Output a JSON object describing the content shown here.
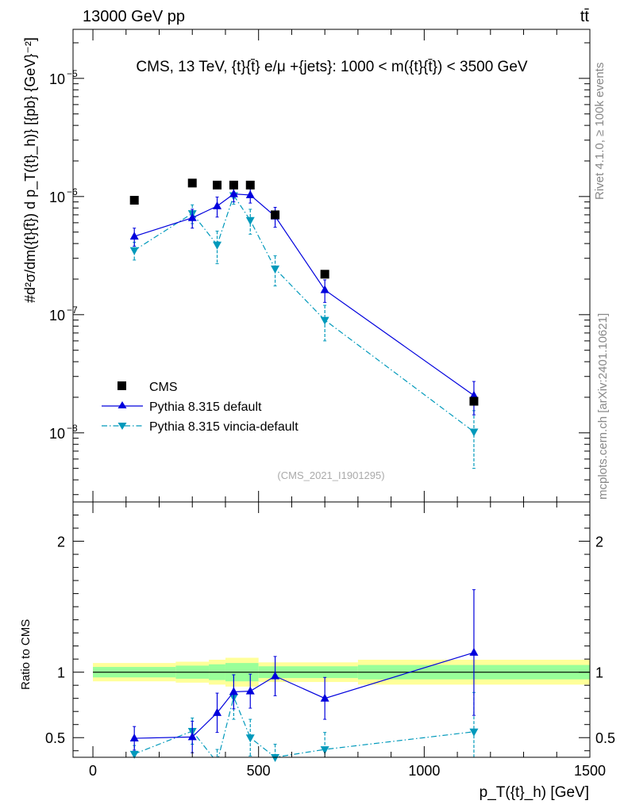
{
  "header": {
    "left": "13000 GeV pp",
    "right": "tt̄"
  },
  "side_labels": {
    "rivet": "Rivet 4.1.0, ≥ 100k events",
    "mcplots": "mcplots.cern.ch [arXiv:2401.10621]"
  },
  "watermark": "(CMS_2021_I1901295)",
  "colors": {
    "cms": "#000000",
    "default": "#0000dd",
    "vincia": "#0099bb",
    "band_inner": "#99ff99",
    "band_outer": "#ffff99"
  },
  "chart_data": [
    {
      "type": "scatter",
      "title": "CMS, 13 TeV, {t}{t̄} e/μ +{jets}: 1000 < m({t}{t̄}) < 3500 GeV",
      "xlabel": "p_T({t}_h) [GeV]",
      "ylabel": "#d²σ/dm({t}{t̄}) d p_T({t}_h)} [{pb} {GeV}⁻²]",
      "yscale": "log",
      "xlim": [
        -60,
        1500
      ],
      "ylim": [
        2.6e-09,
        2.6e-05
      ],
      "y_ticks": [
        {
          "value": 1e-08,
          "label": "10",
          "exp": "−8"
        },
        {
          "value": 1e-07,
          "label": "10",
          "exp": "−7"
        },
        {
          "value": 1e-06,
          "label": "10",
          "exp": "−6"
        },
        {
          "value": 1e-05,
          "label": "10",
          "exp": "−5"
        }
      ],
      "legend": {
        "placement": "bottom-left",
        "entries": [
          "CMS",
          "Pythia 8.315 default",
          "Pythia 8.315 vincia-default"
        ]
      },
      "series": [
        {
          "name": "CMS",
          "marker": "square",
          "color": "#000000",
          "x": [
            125,
            300,
            375,
            425,
            475,
            550,
            700,
            1150
          ],
          "y": [
            9.3e-07,
            1.3e-06,
            1.25e-06,
            1.25e-06,
            1.25e-06,
            7e-07,
            2.2e-07,
            1.85e-08
          ],
          "err": [
            0,
            0,
            0,
            0,
            0,
            0,
            0,
            0
          ]
        },
        {
          "name": "Pythia 8.315 default",
          "marker": "triangle-up",
          "color": "#0000dd",
          "line": "solid",
          "x": [
            125,
            300,
            375,
            425,
            475,
            550,
            700,
            1150
          ],
          "y": [
            4.6e-07,
            6.6e-07,
            8.3e-07,
            1.05e-06,
            1.03e-06,
            6.8e-07,
            1.62e-07,
            2.07e-08
          ],
          "err": [
            8e-08,
            1.2e-07,
            1.6e-07,
            1.5e-07,
            1.5e-07,
            1.3e-07,
            3.5e-08,
            6.5e-09
          ]
        },
        {
          "name": "Pythia 8.315 vincia-default",
          "marker": "triangle-down",
          "color": "#0099bb",
          "line": "dashdot",
          "x": [
            125,
            300,
            375,
            425,
            475,
            550,
            700,
            1150
          ],
          "y": [
            3.5e-07,
            7.2e-07,
            3.9e-07,
            1.02e-06,
            6.3e-07,
            2.45e-07,
            9e-08,
            1.02e-08
          ],
          "err": [
            6e-08,
            1.3e-07,
            1.2e-07,
            1.6e-07,
            1.5e-07,
            7e-08,
            3e-08,
            5.2e-09
          ]
        }
      ]
    },
    {
      "type": "scatter",
      "title": "",
      "xlabel": "p_T({t}_h) [GeV]",
      "ylabel": "Ratio to CMS",
      "xlim": [
        -60,
        1500
      ],
      "ylim": [
        0.35,
        2.3
      ],
      "x_tick_labels": [
        "0",
        "500",
        "1000",
        "1500"
      ],
      "y_tick_labels": [
        "0.5",
        "1",
        "2"
      ],
      "band_bins": [
        {
          "xlo": 0,
          "xhi": 250,
          "inner": 0.04,
          "outer": 0.07
        },
        {
          "xlo": 250,
          "xhi": 350,
          "inner": 0.05,
          "outer": 0.08
        },
        {
          "xlo": 350,
          "xhi": 400,
          "inner": 0.06,
          "outer": 0.095
        },
        {
          "xlo": 400,
          "xhi": 500,
          "inner": 0.07,
          "outer": 0.11
        },
        {
          "xlo": 500,
          "xhi": 800,
          "inner": 0.045,
          "outer": 0.075
        },
        {
          "xlo": 800,
          "xhi": 1500,
          "inner": 0.055,
          "outer": 0.095
        }
      ],
      "series": [
        {
          "name": "Pythia 8.315 default",
          "marker": "triangle-up",
          "color": "#0000dd",
          "line": "solid",
          "x": [
            125,
            300,
            375,
            425,
            475,
            550,
            700,
            1150
          ],
          "y": [
            0.495,
            0.505,
            0.69,
            0.85,
            0.855,
            0.97,
            0.8,
            1.15
          ],
          "err": [
            0.09,
            0.12,
            0.15,
            0.13,
            0.13,
            0.15,
            0.16,
            0.48
          ]
        },
        {
          "name": "Pythia 8.315 vincia-default",
          "marker": "triangle-down",
          "color": "#0099bb",
          "line": "dashdot",
          "x": [
            125,
            300,
            375,
            425,
            475,
            550,
            700,
            1150
          ],
          "y": [
            0.375,
            0.55,
            0.31,
            0.81,
            0.5,
            0.35,
            0.41,
            0.545
          ],
          "err": [
            0.065,
            0.1,
            0.1,
            0.17,
            0.14,
            0.1,
            0.13,
            0.3
          ]
        }
      ]
    }
  ]
}
